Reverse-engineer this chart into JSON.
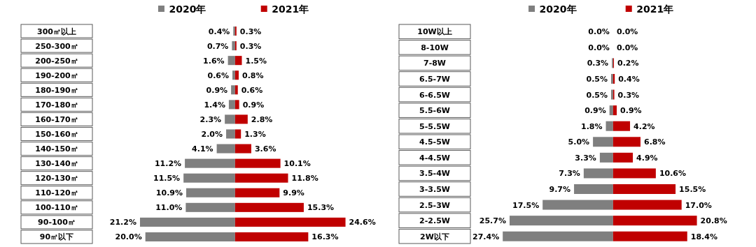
{
  "chart_data": [
    {
      "type": "bar",
      "orientation": "horizontal",
      "tick_labels": "y",
      "categories": [
        "300㎡以上",
        "250-300㎡",
        "200-250㎡",
        "190-200㎡",
        "180-190㎡",
        "170-180㎡",
        "160-170㎡",
        "150-160㎡",
        "140-150㎡",
        "130-140㎡",
        "120-130㎡",
        "110-120㎡",
        "100-110㎡",
        "90-100㎡",
        "90㎡以下"
      ],
      "series": [
        {
          "name": "2020年",
          "color": "#7f7f7f",
          "values": [
            0.4,
            0.7,
            1.6,
            0.6,
            0.9,
            1.4,
            2.3,
            2.0,
            4.1,
            11.2,
            11.5,
            10.9,
            11.0,
            21.2,
            20.0
          ],
          "value_labels": [
            "0.4%",
            "0.7%",
            "1.6%",
            "0.6%",
            "0.9%",
            "1.4%",
            "2.3%",
            "2.0%",
            "4.1%",
            "11.2%",
            "11.5%",
            "10.9%",
            "11.0%",
            "21.2%",
            "20.0%"
          ]
        }
      ]
    },
    {
      "type": "bar",
      "orientation": "horizontal",
      "tick_labels": false,
      "categories": [
        null,
        null,
        null,
        null,
        null,
        null,
        null,
        null,
        null,
        null,
        null,
        null,
        null,
        null,
        null
      ],
      "series": [
        {
          "name": "2021年",
          "color": "#c00000",
          "values": [
            0.3,
            0.3,
            1.5,
            0.8,
            0.6,
            0.9,
            2.8,
            1.3,
            3.6,
            10.1,
            11.8,
            9.9,
            15.3,
            24.6,
            16.3
          ],
          "value_labels": [
            "0.3%",
            "0.3%",
            "1.5%",
            "0.8%",
            "0.6%",
            "0.9%",
            "2.8%",
            "1.3%",
            "3.6%",
            "10.1%",
            "11.8%",
            "9.9%",
            "15.3%",
            "24.6%",
            "16.3%"
          ]
        }
      ]
    },
    {
      "type": "bar",
      "orientation": "horizontal",
      "tick_labels": "y",
      "categories": [
        "10W以上",
        "8-10W",
        "7-8W",
        "6.5-7W",
        "6-6.5W",
        "5.5-6W",
        "5-5.5W",
        "4.5-5W",
        "4-4.5W",
        "3.5-4W",
        "3-3.5W",
        "2.5-3W",
        "2-2.5W",
        "2W以下"
      ],
      "series": [
        {
          "name": "2020年",
          "color": "#7f7f7f",
          "values": [
            0.0,
            0.0,
            0.3,
            0.5,
            0.5,
            0.9,
            1.8,
            5.0,
            3.3,
            7.3,
            9.7,
            17.5,
            25.7,
            27.4
          ],
          "value_labels": [
            "0.0%",
            "0.0%",
            "0.3%",
            "0.5%",
            "0.5%",
            "0.9%",
            "1.8%",
            "5.0%",
            "3.3%",
            "7.3%",
            "9.7%",
            "17.5%",
            "25.7%",
            "27.4%"
          ]
        }
      ]
    },
    {
      "type": "bar",
      "orientation": "horizontal",
      "tick_labels": false,
      "categories": [
        null,
        null,
        null,
        null,
        null,
        null,
        null,
        null,
        null,
        null,
        null,
        null,
        null,
        null
      ],
      "series": [
        {
          "name": "2021年",
          "color": "#c00000",
          "values": [
            0.0,
            0.0,
            0.2,
            0.4,
            0.3,
            0.9,
            4.2,
            6.8,
            4.9,
            10.6,
            15.5,
            17.0,
            20.8,
            18.4
          ],
          "value_labels": [
            "0.0%",
            "0.0%",
            "0.2%",
            "0.4%",
            "0.3%",
            "0.9%",
            "4.2%",
            "6.8%",
            "4.9%",
            "10.6%",
            "15.5%",
            "17.0%",
            "20.8%",
            "18.4%"
          ]
        }
      ]
    }
  ]
}
